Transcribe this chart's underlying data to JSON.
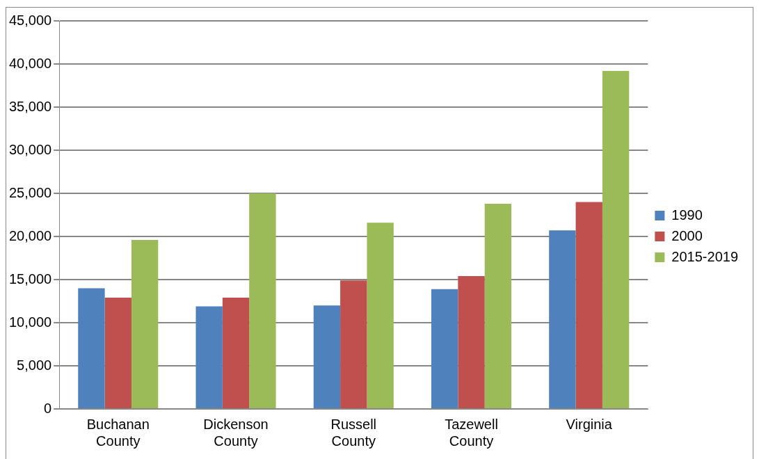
{
  "chart_data": {
    "type": "bar",
    "categories": [
      "Buchanan County",
      "Dickenson County",
      "Russell County",
      "Tazewell County",
      "Virginia"
    ],
    "series": [
      {
        "name": "1990",
        "color": "#4f81bd",
        "values": [
          14000,
          11900,
          12000,
          13900,
          20700
        ]
      },
      {
        "name": "2000",
        "color": "#c0504d",
        "values": [
          12900,
          12900,
          14900,
          15400,
          24000
        ]
      },
      {
        "name": "2015-2019",
        "color": "#9bbb59",
        "values": [
          19600,
          25000,
          21600,
          23800,
          39200
        ]
      }
    ],
    "ylim": [
      0,
      45000
    ],
    "yticks": [
      0,
      {
        "value": 5000,
        "label": "5,000"
      },
      {
        "value": 10000,
        "label": "10,000"
      },
      {
        "value": 15000,
        "label": "15,000"
      },
      {
        "value": 20000,
        "label": "20,000"
      },
      {
        "value": 25000,
        "label": "25,000"
      },
      {
        "value": 30000,
        "label": "30,000"
      },
      {
        "value": 35000,
        "label": "35,000"
      },
      {
        "value": 40000,
        "label": "40,000"
      },
      {
        "value": 45000,
        "label": "45,000"
      }
    ],
    "grid": "y",
    "legend": "right"
  }
}
